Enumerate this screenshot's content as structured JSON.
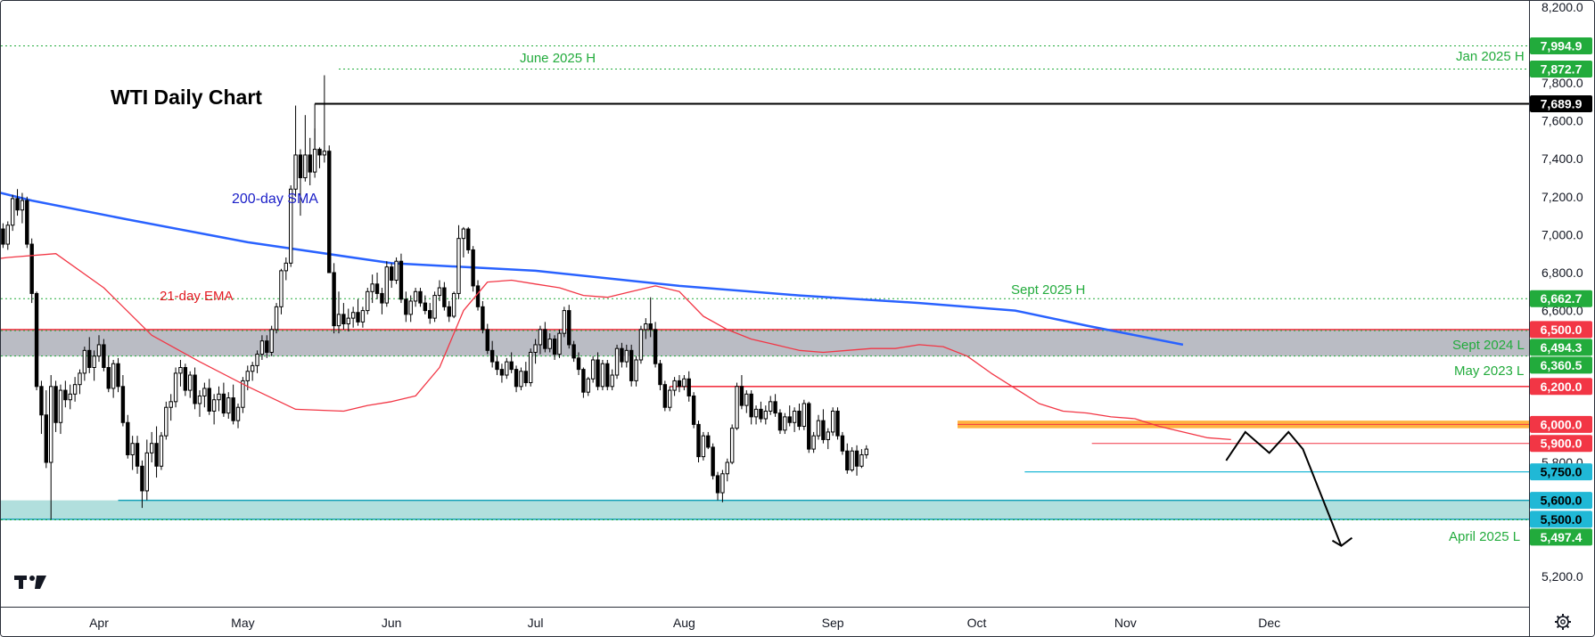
{
  "chart_data": {
    "type": "candlestick",
    "title": "WTI Daily Chart",
    "ylim": [
      5100,
      8220
    ],
    "y_ticks": [
      "8,200.0",
      "7,800.0",
      "7,600.0",
      "7,400.0",
      "7,200.0",
      "7,000.0",
      "6,800.0",
      "6,600.0",
      "5,800.0",
      "5,200.0"
    ],
    "x_ticks": [
      {
        "label": "Apr",
        "day": 29
      },
      {
        "label": "May",
        "day": 59
      },
      {
        "label": "Jun",
        "day": 90
      },
      {
        "label": "Jul",
        "day": 120
      },
      {
        "label": "Aug",
        "day": 151
      },
      {
        "label": "Sep",
        "day": 182
      },
      {
        "label": "Oct",
        "day": 212
      },
      {
        "label": "Nov",
        "day": 243
      },
      {
        "label": "Dec",
        "day": 273
      }
    ],
    "series": [
      {
        "name": "200-day SMA",
        "color": "#2962ff",
        "x": [
          -6,
          15,
          35,
          60,
          90,
          120,
          150,
          175,
          200,
          220,
          235,
          255
        ],
        "y": [
          7310,
          7180,
          7080,
          6960,
          6850,
          6810,
          6730,
          6680,
          6640,
          6600,
          6520,
          6420
        ]
      },
      {
        "name": "21-day EMA",
        "color": "#f23645",
        "x": [
          -6,
          0,
          10,
          20,
          30,
          40,
          50,
          60,
          70,
          80,
          85,
          90,
          95,
          100,
          105,
          110,
          115,
          120,
          125,
          130,
          135,
          140,
          145,
          150,
          155,
          160,
          165,
          170,
          175,
          180,
          185,
          190,
          195,
          200,
          205,
          210,
          215,
          220,
          225,
          230,
          235,
          240,
          245,
          250,
          255,
          260,
          265
        ],
        "y": [
          6880,
          6850,
          6880,
          6900,
          6720,
          6470,
          6330,
          6200,
          6080,
          6070,
          6100,
          6120,
          6150,
          6300,
          6600,
          6750,
          6760,
          6740,
          6720,
          6680,
          6670,
          6700,
          6730,
          6700,
          6570,
          6500,
          6450,
          6420,
          6390,
          6380,
          6390,
          6400,
          6400,
          6420,
          6410,
          6360,
          6270,
          6190,
          6110,
          6070,
          6060,
          6040,
          6030,
          5990,
          5960,
          5930,
          5920
        ]
      }
    ],
    "annotations": [
      {
        "text": "June 2025 H",
        "color": "#22ab3c"
      },
      {
        "text": "Jan 2025 H",
        "color": "#22ab3c"
      },
      {
        "text": "Sept 2025 H",
        "color": "#22ab3c"
      },
      {
        "text": "Sept 2024 L",
        "color": "#22ab3c"
      },
      {
        "text": "May 2023 L",
        "color": "#22ab3c"
      },
      {
        "text": "April 2025 L",
        "color": "#22ab3c"
      },
      {
        "text": "200-day SMA",
        "color": "#1c20c8"
      },
      {
        "text": "21-day EMA",
        "color": "#e31b23"
      }
    ],
    "levels": [
      {
        "value": 7994.9,
        "label": "7,994.9",
        "style": "green-dotted",
        "badge": "#22ab3c"
      },
      {
        "value": 7872.7,
        "label": "7,872.7",
        "style": "green-dotted",
        "badge": "#22ab3c"
      },
      {
        "value": 7689.9,
        "label": "7,689.9",
        "style": "black",
        "badge": "#000000"
      },
      {
        "value": 6662.7,
        "label": "6,662.7",
        "style": "green-dotted",
        "badge": "#22ab3c"
      },
      {
        "value": 6500.0,
        "label": "6,500.0",
        "style": "red",
        "badge": "#f23645"
      },
      {
        "value": 6494.3,
        "label": "6,494.3",
        "style": "green-dotted",
        "badge": "#22ab3c"
      },
      {
        "value": 6360.5,
        "label": "6,360.5",
        "style": "green-dotted",
        "badge": "#22ab3c"
      },
      {
        "value": 6200.0,
        "label": "6,200.0",
        "style": "red",
        "badge": "#f23645"
      },
      {
        "value": 6000.0,
        "label": "6,000.0",
        "style": "orange-zone",
        "badge": "#f23645"
      },
      {
        "value": 5900.0,
        "label": "5,900.0",
        "style": "red-thin",
        "badge": "#f23645"
      },
      {
        "value": 5750.0,
        "label": "5,750.0",
        "style": "cyan",
        "badge": "#20b8d6"
      },
      {
        "value": 5600.0,
        "label": "5,600.0",
        "style": "cyan-zone",
        "badge": "#20b8d6"
      },
      {
        "value": 5500.0,
        "label": "5,500.0",
        "style": "cyan-zone",
        "badge": "#20b8d6"
      },
      {
        "value": 5497.4,
        "label": "5,497.4",
        "style": "green-dotted",
        "badge": "#22ab3c"
      }
    ],
    "zones": [
      {
        "name": "resistance-zone",
        "from": 6360,
        "to": 6500,
        "color": "#b2b5be"
      },
      {
        "name": "orange-zone",
        "from": 5980,
        "to": 6020,
        "color": "#ff9800"
      },
      {
        "name": "support-zone",
        "from": 5500,
        "to": 5600,
        "color": "#a8dcd9"
      }
    ],
    "candles_start_day": -4,
    "candles": [
      [
        6690,
        6790,
        6660,
        6760
      ],
      [
        6760,
        6780,
        6640,
        6680
      ],
      [
        6680,
        6720,
        6620,
        6710
      ],
      [
        6710,
        6770,
        6680,
        6690
      ],
      [
        6690,
        6730,
        6630,
        6650
      ],
      [
        6650,
        6760,
        6640,
        6750
      ],
      [
        6750,
        6880,
        6730,
        6870
      ],
      [
        6870,
        6940,
        6850,
        6890
      ],
      [
        6890,
        6960,
        6860,
        6900
      ],
      [
        6900,
        6950,
        6850,
        6920
      ],
      [
        6920,
        7010,
        6900,
        7000
      ],
      [
        7000,
        7040,
        6950,
        6960
      ],
      [
        6960,
        7050,
        6930,
        7030
      ],
      [
        7030,
        7060,
        6930,
        6950
      ],
      [
        6950,
        7070,
        6920,
        7050
      ],
      [
        7050,
        7210,
        7020,
        7190
      ],
      [
        7190,
        7240,
        7100,
        7130
      ],
      [
        7130,
        7220,
        7060,
        7180
      ],
      [
        7180,
        7200,
        6930,
        6950
      ],
      [
        6950,
        6980,
        6640,
        6690
      ],
      [
        6690,
        6700,
        6180,
        6200
      ],
      [
        6200,
        6230,
        5950,
        6050
      ],
      [
        6050,
        6180,
        5770,
        5800
      ],
      [
        5800,
        6260,
        5500,
        6200
      ],
      [
        6200,
        6230,
        5960,
        6010
      ],
      [
        6010,
        6210,
        5950,
        6180
      ],
      [
        6180,
        6230,
        6090,
        6130
      ],
      [
        6130,
        6210,
        6080,
        6160
      ],
      [
        6160,
        6250,
        6120,
        6210
      ],
      [
        6210,
        6290,
        6160,
        6270
      ],
      [
        6270,
        6410,
        6230,
        6390
      ],
      [
        6390,
        6460,
        6270,
        6300
      ],
      [
        6300,
        6390,
        6230,
        6360
      ],
      [
        6360,
        6470,
        6330,
        6420
      ],
      [
        6420,
        6450,
        6280,
        6300
      ],
      [
        6300,
        6360,
        6170,
        6190
      ],
      [
        6190,
        6340,
        6140,
        6320
      ],
      [
        6320,
        6350,
        6170,
        6200
      ],
      [
        6200,
        6260,
        5990,
        6010
      ],
      [
        6010,
        6050,
        5820,
        5840
      ],
      [
        5840,
        5940,
        5760,
        5900
      ],
      [
        5900,
        5940,
        5740,
        5780
      ],
      [
        5780,
        5810,
        5560,
        5650
      ],
      [
        5650,
        5920,
        5600,
        5850
      ],
      [
        5850,
        5960,
        5800,
        5900
      ],
      [
        5900,
        5990,
        5720,
        5780
      ],
      [
        5780,
        5960,
        5760,
        5940
      ],
      [
        5940,
        6120,
        5920,
        6090
      ],
      [
        6090,
        6160,
        6020,
        6120
      ],
      [
        6120,
        6300,
        6090,
        6270
      ],
      [
        6270,
        6340,
        6200,
        6300
      ],
      [
        6300,
        6320,
        6150,
        6180
      ],
      [
        6180,
        6280,
        6140,
        6260
      ],
      [
        6260,
        6300,
        6080,
        6110
      ],
      [
        6110,
        6180,
        6040,
        6150
      ],
      [
        6150,
        6220,
        6090,
        6190
      ],
      [
        6190,
        6240,
        6050,
        6070
      ],
      [
        6070,
        6160,
        6000,
        6130
      ],
      [
        6130,
        6200,
        6070,
        6160
      ],
      [
        6160,
        6220,
        6040,
        6060
      ],
      [
        6060,
        6170,
        6030,
        6140
      ],
      [
        6140,
        6210,
        6000,
        6020
      ],
      [
        6020,
        6110,
        5980,
        6090
      ],
      [
        6090,
        6250,
        6060,
        6230
      ],
      [
        6230,
        6310,
        6180,
        6280
      ],
      [
        6280,
        6330,
        6230,
        6310
      ],
      [
        6310,
        6390,
        6270,
        6370
      ],
      [
        6370,
        6470,
        6340,
        6440
      ],
      [
        6440,
        6470,
        6350,
        6380
      ],
      [
        6380,
        6520,
        6360,
        6500
      ],
      [
        6500,
        6640,
        6480,
        6620
      ],
      [
        6620,
        6820,
        6580,
        6810
      ],
      [
        6810,
        6880,
        6760,
        6850
      ],
      [
        6850,
        7260,
        6830,
        7240
      ],
      [
        7240,
        7680,
        7200,
        7420
      ],
      [
        7420,
        7450,
        7100,
        7300
      ],
      [
        7300,
        7630,
        7280,
        7420
      ],
      [
        7420,
        7510,
        7260,
        7330
      ],
      [
        7330,
        7560,
        7300,
        7450
      ],
      [
        7450,
        7460,
        7350,
        7420
      ],
      [
        7420,
        7840,
        7380,
        7440
      ],
      [
        7440,
        7470,
        6810,
        6800
      ],
      [
        6800,
        6850,
        6480,
        6520
      ],
      [
        6520,
        6700,
        6480,
        6580
      ],
      [
        6580,
        6640,
        6500,
        6530
      ],
      [
        6530,
        6610,
        6490,
        6560
      ],
      [
        6560,
        6620,
        6510,
        6590
      ],
      [
        6590,
        6660,
        6520,
        6540
      ],
      [
        6540,
        6620,
        6510,
        6600
      ],
      [
        6600,
        6720,
        6580,
        6700
      ],
      [
        6700,
        6790,
        6640,
        6740
      ],
      [
        6740,
        6800,
        6660,
        6690
      ],
      [
        6690,
        6720,
        6580,
        6640
      ],
      [
        6640,
        6860,
        6620,
        6830
      ],
      [
        6830,
        6850,
        6720,
        6760
      ],
      [
        6760,
        6880,
        6740,
        6860
      ],
      [
        6860,
        6900,
        6640,
        6660
      ],
      [
        6660,
        6700,
        6540,
        6580
      ],
      [
        6580,
        6680,
        6540,
        6650
      ],
      [
        6650,
        6720,
        6620,
        6700
      ],
      [
        6700,
        6720,
        6620,
        6640
      ],
      [
        6640,
        6680,
        6580,
        6600
      ],
      [
        6600,
        6640,
        6530,
        6560
      ],
      [
        6560,
        6700,
        6540,
        6680
      ],
      [
        6680,
        6760,
        6650,
        6720
      ],
      [
        6720,
        6750,
        6600,
        6620
      ],
      [
        6620,
        6650,
        6540,
        6570
      ],
      [
        6570,
        6700,
        6560,
        6690
      ],
      [
        6690,
        7050,
        6660,
        6980
      ],
      [
        6980,
        7040,
        6880,
        7030
      ],
      [
        7030,
        7040,
        6900,
        6920
      ],
      [
        6920,
        6940,
        6700,
        6730
      ],
      [
        6730,
        6760,
        6600,
        6620
      ],
      [
        6620,
        6650,
        6480,
        6500
      ],
      [
        6500,
        6530,
        6370,
        6390
      ],
      [
        6390,
        6440,
        6300,
        6330
      ],
      [
        6330,
        6360,
        6260,
        6290
      ],
      [
        6290,
        6320,
        6220,
        6260
      ],
      [
        6260,
        6350,
        6240,
        6330
      ],
      [
        6330,
        6380,
        6270,
        6290
      ],
      [
        6290,
        6310,
        6170,
        6200
      ],
      [
        6200,
        6300,
        6180,
        6280
      ],
      [
        6280,
        6330,
        6200,
        6220
      ],
      [
        6220,
        6400,
        6200,
        6380
      ],
      [
        6380,
        6450,
        6320,
        6420
      ],
      [
        6420,
        6520,
        6370,
        6500
      ],
      [
        6500,
        6540,
        6380,
        6400
      ],
      [
        6400,
        6480,
        6380,
        6450
      ],
      [
        6450,
        6470,
        6340,
        6370
      ],
      [
        6370,
        6500,
        6350,
        6480
      ],
      [
        6480,
        6620,
        6460,
        6600
      ],
      [
        6600,
        6630,
        6400,
        6420
      ],
      [
        6420,
        6440,
        6330,
        6350
      ],
      [
        6350,
        6380,
        6260,
        6290
      ],
      [
        6290,
        6300,
        6140,
        6170
      ],
      [
        6170,
        6250,
        6150,
        6240
      ],
      [
        6240,
        6360,
        6220,
        6340
      ],
      [
        6340,
        6380,
        6180,
        6200
      ],
      [
        6200,
        6340,
        6180,
        6320
      ],
      [
        6320,
        6340,
        6180,
        6200
      ],
      [
        6200,
        6290,
        6180,
        6260
      ],
      [
        6260,
        6420,
        6240,
        6400
      ],
      [
        6400,
        6430,
        6300,
        6330
      ],
      [
        6330,
        6420,
        6300,
        6390
      ],
      [
        6390,
        6420,
        6200,
        6230
      ],
      [
        6230,
        6360,
        6200,
        6340
      ],
      [
        6340,
        6520,
        6320,
        6500
      ],
      [
        6500,
        6560,
        6450,
        6530
      ],
      [
        6530,
        6670,
        6460,
        6500
      ],
      [
        6500,
        6540,
        6300,
        6320
      ],
      [
        6320,
        6340,
        6180,
        6210
      ],
      [
        6210,
        6230,
        6070,
        6090
      ],
      [
        6090,
        6200,
        6070,
        6180
      ],
      [
        6180,
        6250,
        6150,
        6230
      ],
      [
        6230,
        6260,
        6170,
        6200
      ],
      [
        6200,
        6260,
        6180,
        6240
      ],
      [
        6240,
        6280,
        6120,
        6150
      ],
      [
        6150,
        6170,
        5980,
        6000
      ],
      [
        6000,
        6020,
        5800,
        5830
      ],
      [
        5830,
        5960,
        5810,
        5940
      ],
      [
        5940,
        5960,
        5870,
        5880
      ],
      [
        5880,
        5900,
        5710,
        5730
      ],
      [
        5730,
        5750,
        5600,
        5640
      ],
      [
        5640,
        5760,
        5590,
        5740
      ],
      [
        5740,
        5820,
        5700,
        5800
      ],
      [
        5800,
        6000,
        5790,
        5980
      ],
      [
        5980,
        6220,
        5970,
        6200
      ],
      [
        6200,
        6260,
        6080,
        6100
      ],
      [
        6100,
        6180,
        6060,
        6160
      ],
      [
        6160,
        6180,
        6000,
        6040
      ],
      [
        6040,
        6100,
        6000,
        6080
      ],
      [
        6080,
        6120,
        6010,
        6030
      ],
      [
        6030,
        6100,
        6000,
        6070
      ],
      [
        6070,
        6150,
        6050,
        6120
      ],
      [
        6120,
        6160,
        6040,
        6060
      ],
      [
        6060,
        6080,
        5950,
        5970
      ],
      [
        5970,
        6060,
        5950,
        6040
      ],
      [
        6040,
        6100,
        5990,
        6010
      ],
      [
        6010,
        6090,
        5960,
        6070
      ],
      [
        6070,
        6110,
        5970,
        5990
      ],
      [
        5990,
        6130,
        5970,
        6110
      ],
      [
        6110,
        6120,
        5850,
        5870
      ],
      [
        5870,
        5960,
        5850,
        5940
      ],
      [
        5940,
        6050,
        5920,
        6020
      ],
      [
        6020,
        6080,
        5900,
        5920
      ],
      [
        5920,
        5980,
        5870,
        5960
      ],
      [
        5960,
        6090,
        5940,
        6070
      ],
      [
        6070,
        6090,
        5920,
        5940
      ],
      [
        5940,
        5960,
        5840,
        5860
      ],
      [
        5860,
        5900,
        5740,
        5760
      ],
      [
        5760,
        5880,
        5750,
        5860
      ],
      [
        5860,
        5890,
        5730,
        5780
      ],
      [
        5780,
        5870,
        5770,
        5840
      ],
      [
        5840,
        5890,
        5820,
        5870
      ]
    ]
  },
  "projection": {
    "x": [
      264,
      268,
      273,
      277,
      280,
      288
    ],
    "y": [
      5810,
      5960,
      5850,
      5960,
      5870,
      5360
    ]
  }
}
